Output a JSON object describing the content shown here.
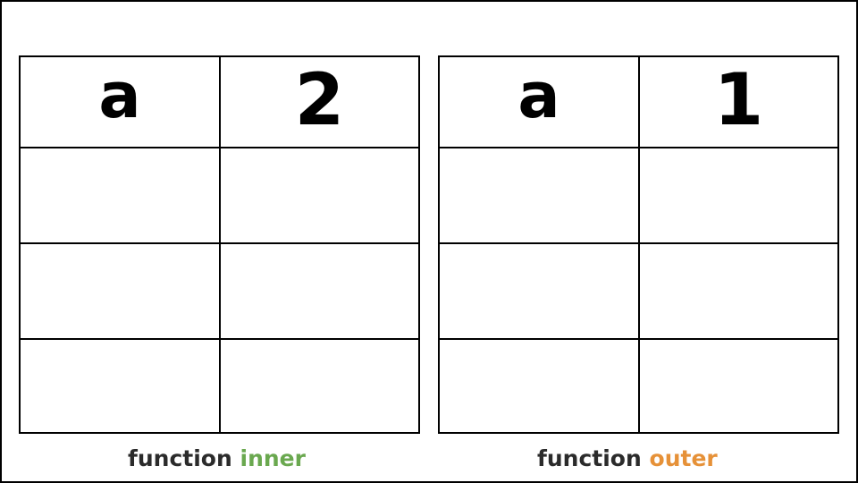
{
  "scopes": [
    {
      "variable": "a",
      "value": "2",
      "keyword": "function",
      "function_name": "inner",
      "name_color": "#6aa84f"
    },
    {
      "variable": "a",
      "value": "1",
      "keyword": "function",
      "function_name": "outer",
      "name_color": "#e69138"
    }
  ]
}
